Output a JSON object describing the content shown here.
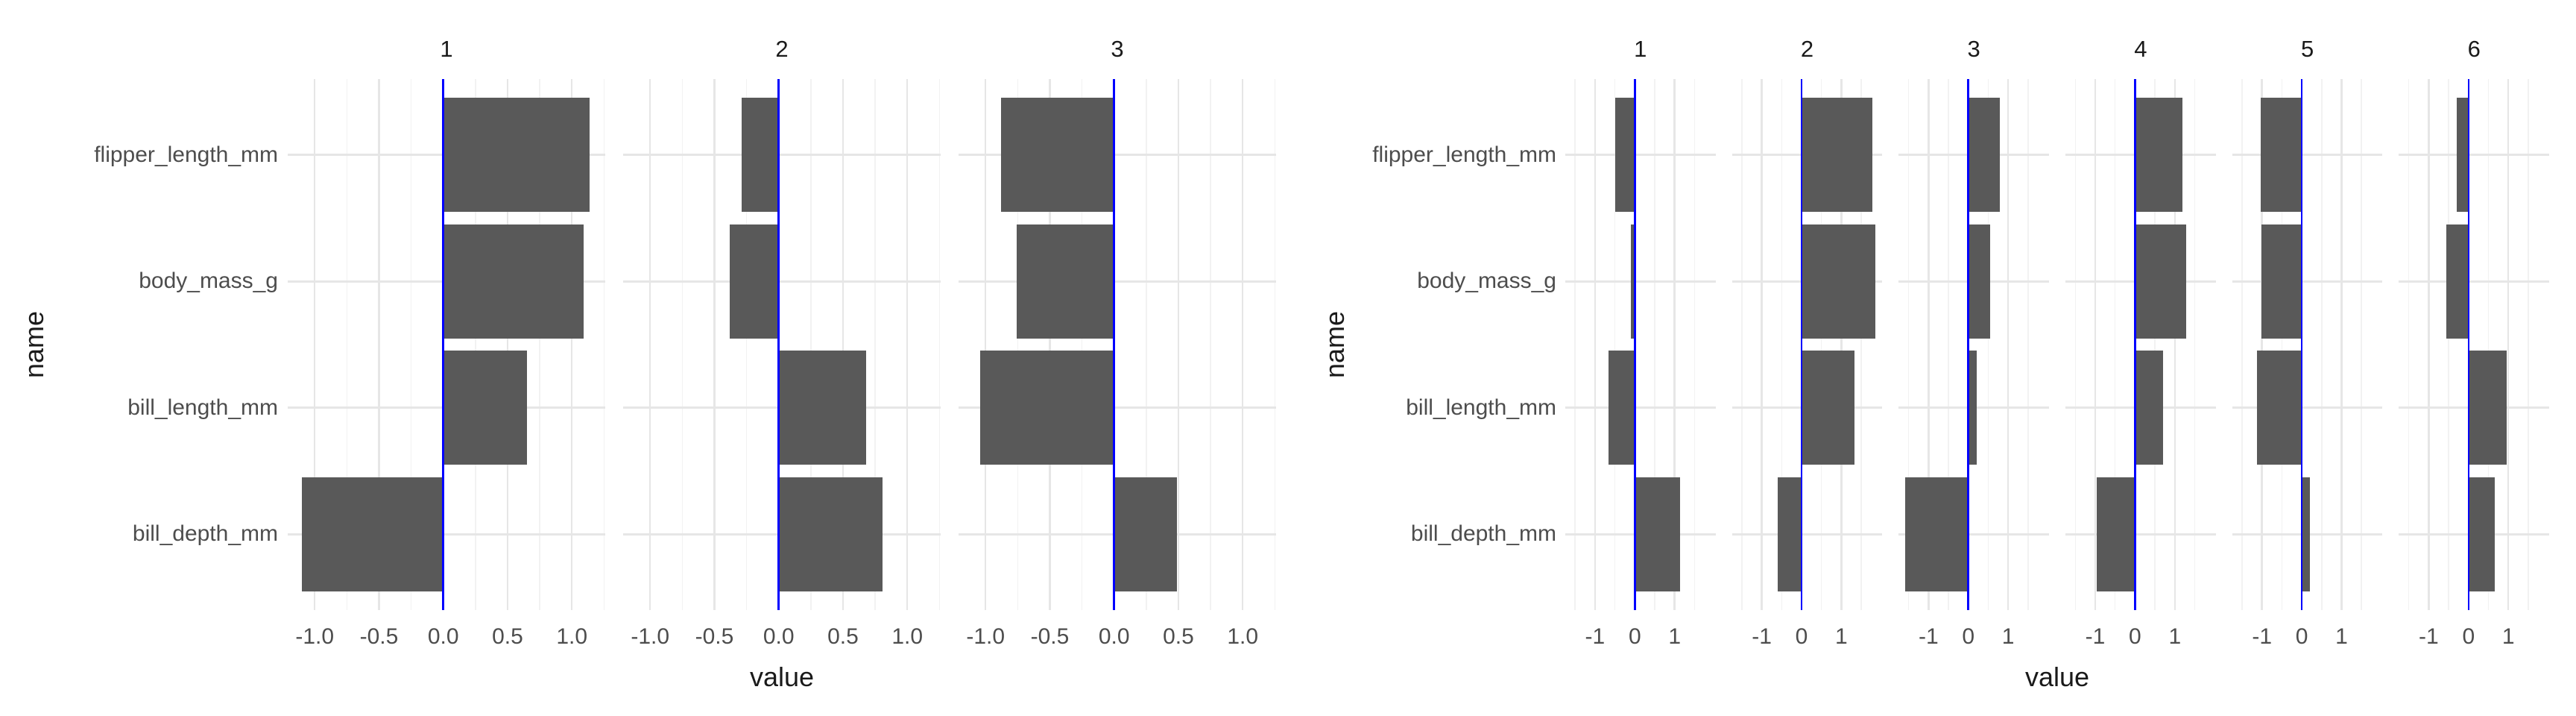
{
  "figure_type": "faceted horizontal bar charts (cluster feature means)",
  "colors": {
    "bar": "#595959",
    "zero_line": "#0000FF",
    "grid_major": "#E6E6E6",
    "grid_minor": "#F2F2F2",
    "axis_text": "#4D4D4D",
    "title_text": "#1A1A1A",
    "background": "#FFFFFF"
  },
  "chart_data": [
    {
      "type": "bar",
      "orientation": "horizontal",
      "title": "",
      "xlabel": "value",
      "ylabel": "name",
      "categories": [
        "flipper_length_mm",
        "body_mass_g",
        "bill_length_mm",
        "bill_depth_mm"
      ],
      "facets_label_row": [
        "1",
        "2",
        "3"
      ],
      "series": [
        {
          "name": "1",
          "values": [
            1.14,
            1.09,
            0.65,
            -1.1
          ]
        },
        {
          "name": "2",
          "values": [
            -0.29,
            -0.38,
            0.68,
            0.81
          ]
        },
        {
          "name": "3",
          "values": [
            -0.88,
            -0.76,
            -1.04,
            0.49
          ]
        }
      ],
      "x_ticks": [
        -1.0,
        -0.5,
        0.0,
        0.5,
        1.0
      ],
      "x_tick_labels": [
        "-1.0",
        "-0.5",
        "0.0",
        "0.5",
        "1.0"
      ],
      "xlim": [
        -1.2125,
        1.2625
      ],
      "grid": "major and minor vertical, major horizontal per category",
      "legend": "none",
      "zero_reference_line": 0
    },
    {
      "type": "bar",
      "orientation": "horizontal",
      "title": "",
      "xlabel": "value",
      "ylabel": "name",
      "categories": [
        "flipper_length_mm",
        "body_mass_g",
        "bill_length_mm",
        "bill_depth_mm"
      ],
      "facets_label_row": [
        "1",
        "2",
        "3",
        "4",
        "5",
        "6"
      ],
      "series": [
        {
          "name": "1",
          "values": [
            -0.5,
            -0.09,
            -0.66,
            1.14
          ]
        },
        {
          "name": "2",
          "values": [
            1.78,
            1.86,
            1.33,
            -0.59
          ]
        },
        {
          "name": "3",
          "values": [
            0.8,
            0.55,
            0.22,
            -1.58
          ]
        },
        {
          "name": "4",
          "values": [
            1.19,
            1.29,
            0.7,
            -0.96
          ]
        },
        {
          "name": "5",
          "values": [
            -1.03,
            -1.02,
            -1.13,
            0.21
          ]
        },
        {
          "name": "6",
          "values": [
            -0.3,
            -0.56,
            0.95,
            0.66
          ]
        }
      ],
      "x_ticks": [
        -1,
        0,
        1
      ],
      "x_tick_labels": [
        "-1",
        "0",
        "1"
      ],
      "xlim": [
        -1.75,
        2.03
      ],
      "grid": "major and minor vertical, major horizontal per category",
      "legend": "none",
      "zero_reference_line": 0
    }
  ]
}
